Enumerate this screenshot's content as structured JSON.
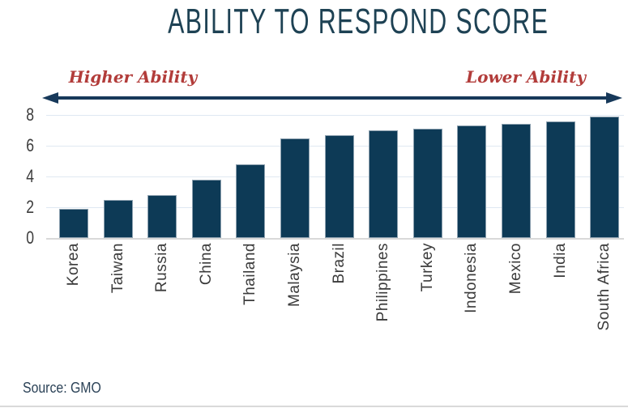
{
  "title": "ABILITY TO RESPOND SCORE",
  "annotations": {
    "left": "Higher Ability",
    "right": "Lower Ability"
  },
  "source": "Source: GMO",
  "colors": {
    "bar": "#0d3a56",
    "bar_border": "#8ca0af",
    "title": "#1e4254",
    "arrow": "#17395a",
    "annotation": "#b23c3a",
    "gridline": "#dfe8f2",
    "baseline": "#d9d9d9",
    "axis_text": "#3b3b3b",
    "source_text": "#2b4257",
    "divider": "#d9d9d9"
  },
  "chart_data": {
    "type": "bar",
    "title": "ABILITY TO RESPOND SCORE",
    "categories": [
      "Korea",
      "Taiwan",
      "Russia",
      "China",
      "Thailand",
      "Malaysia",
      "Brazil",
      "Philippines",
      "Turkey",
      "Indonesia",
      "Mexico",
      "India",
      "South Africa"
    ],
    "values": [
      1.9,
      2.5,
      2.8,
      3.8,
      4.8,
      6.5,
      6.7,
      7.0,
      7.1,
      7.3,
      7.4,
      7.6,
      7.9
    ],
    "xlabel": "",
    "ylabel": "",
    "yticks": [
      0,
      2,
      4,
      6,
      8
    ],
    "ylim": [
      0,
      8
    ],
    "grid": true,
    "legend": "none",
    "annotations": [
      "Higher Ability (left)",
      "Lower Ability (right)"
    ]
  }
}
